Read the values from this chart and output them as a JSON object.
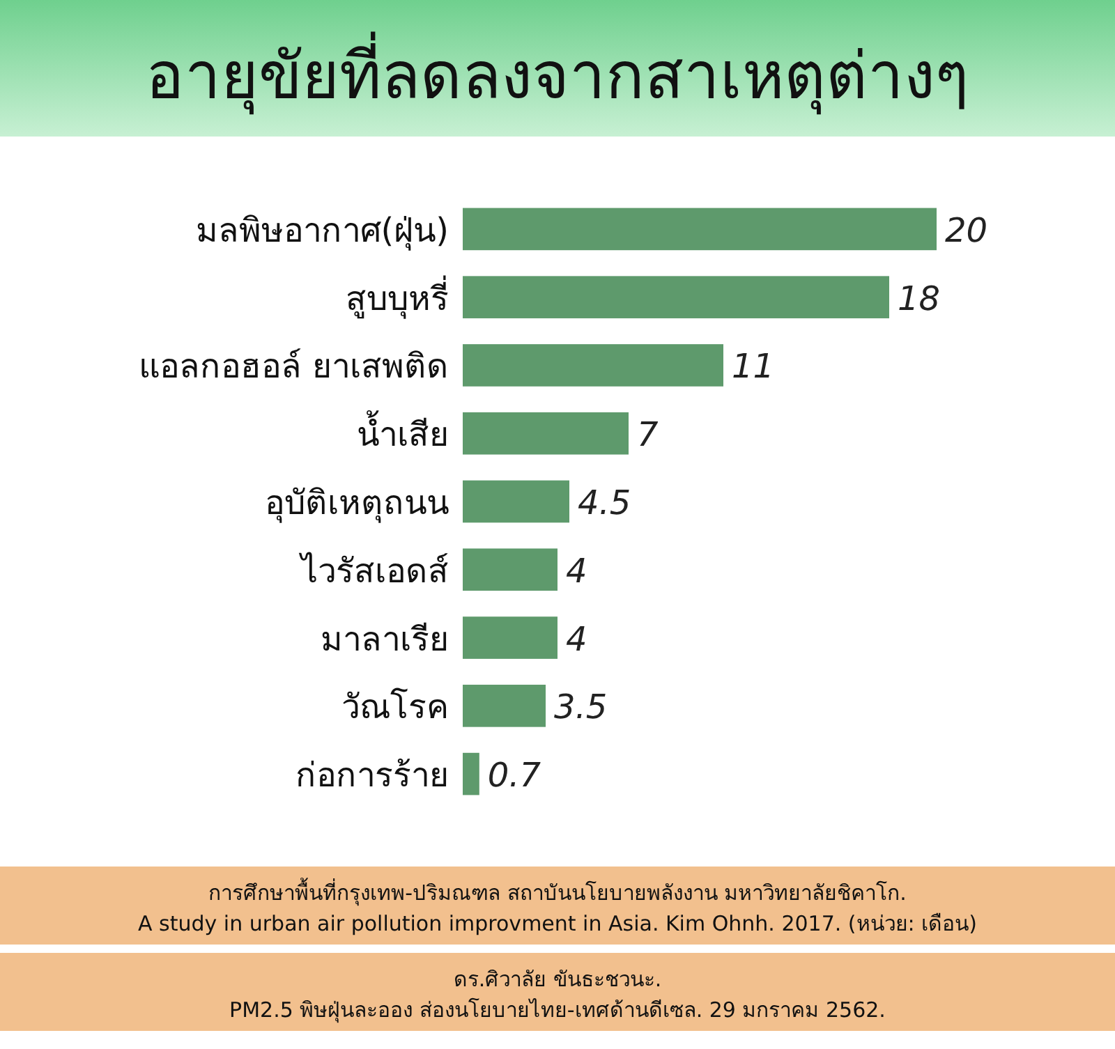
{
  "chart_data": {
    "type": "bar",
    "orientation": "horizontal",
    "title": "อายุขัยที่ลดลงจากสาเหตุต่างๆ",
    "categories": [
      "มลพิษอากาศ(ฝุ่น)",
      "สูบบุหรี่",
      "แอลกอฮอล์ ยาเสพติด",
      "น้ำเสีย",
      "อุบัติเหตุถนน",
      "ไวรัสเอดส์",
      "มาลาเรีย",
      "วัณโรค",
      "ก่อการร้าย"
    ],
    "values": [
      20,
      18,
      11,
      7,
      4.5,
      4,
      4,
      3.5,
      0.7
    ],
    "color": "#5e9a6c",
    "data_labels": true,
    "annotations": [
      "การศึกษาพื้นที่กรุงเทพ-ปริมณฑล สถาบันนโยบายพลังงาน มหาวิทยาลัยชิคาโก.",
      "A study in urban air pollution improvment in Asia. Kim Ohnh. 2017. (หน่วย: เดือน)",
      "ดร.ศิวาลัย ขันธะชวนะ.",
      "PM2.5 พิษฝุ่นละออง ส่องนโยบายไทย-เทศด้านดีเซล. 29 มกราคม 2562."
    ]
  }
}
